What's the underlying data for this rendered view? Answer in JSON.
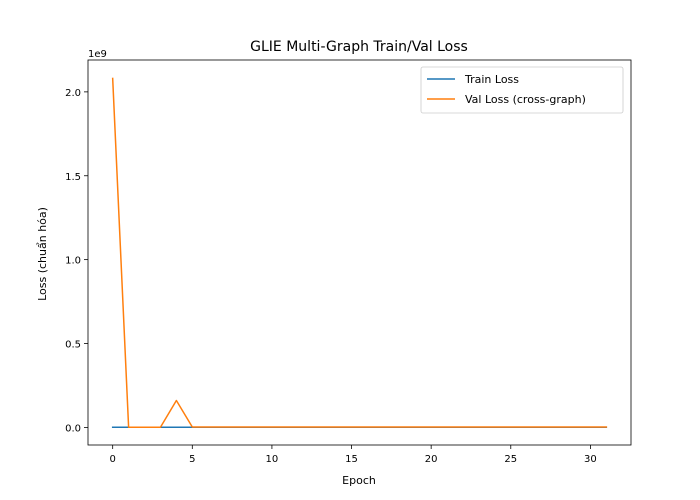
{
  "chart_data": {
    "type": "line",
    "title": "GLIE Multi-Graph Train/Val Loss",
    "xlabel": "Epoch",
    "ylabel": "Loss (chuẩn hóa)",
    "y_offset_label": "1e9",
    "y_scale_factor": 1000000000,
    "xlim": [
      -1.55,
      32.55
    ],
    "ylim": [
      -0.105,
      2.19
    ],
    "x_ticks": [
      0,
      5,
      10,
      15,
      20,
      25,
      30
    ],
    "y_ticks": [
      0.0,
      0.5,
      1.0,
      1.5,
      2.0
    ],
    "y_tick_labels": [
      "0.0",
      "0.5",
      "1.0",
      "1.5",
      "2.0"
    ],
    "grid": false,
    "legend_position": "top-right",
    "x": [
      0,
      1,
      2,
      3,
      4,
      5,
      6,
      7,
      8,
      9,
      10,
      11,
      12,
      13,
      14,
      15,
      16,
      17,
      18,
      19,
      20,
      21,
      22,
      23,
      24,
      25,
      26,
      27,
      28,
      29,
      30,
      31
    ],
    "series": [
      {
        "name": "Train Loss",
        "color": "#1f77b4",
        "values": [
          0.001,
          0.001,
          0.001,
          0.001,
          0.001,
          0.001,
          0.001,
          0.001,
          0.001,
          0.001,
          0.001,
          0.001,
          0.001,
          0.001,
          0.001,
          0.001,
          0.001,
          0.001,
          0.001,
          0.001,
          0.001,
          0.001,
          0.001,
          0.001,
          0.001,
          0.001,
          0.001,
          0.001,
          0.001,
          0.001,
          0.001,
          0.001
        ]
      },
      {
        "name": "Val Loss (cross-graph)",
        "color": "#ff7f0e",
        "values": [
          2.08,
          0.001,
          0.001,
          0.001,
          0.16,
          0.002,
          0.002,
          0.002,
          0.002,
          0.002,
          0.002,
          0.002,
          0.002,
          0.002,
          0.002,
          0.002,
          0.002,
          0.002,
          0.002,
          0.002,
          0.002,
          0.002,
          0.002,
          0.002,
          0.002,
          0.002,
          0.002,
          0.002,
          0.002,
          0.002,
          0.002,
          0.002
        ]
      }
    ]
  }
}
